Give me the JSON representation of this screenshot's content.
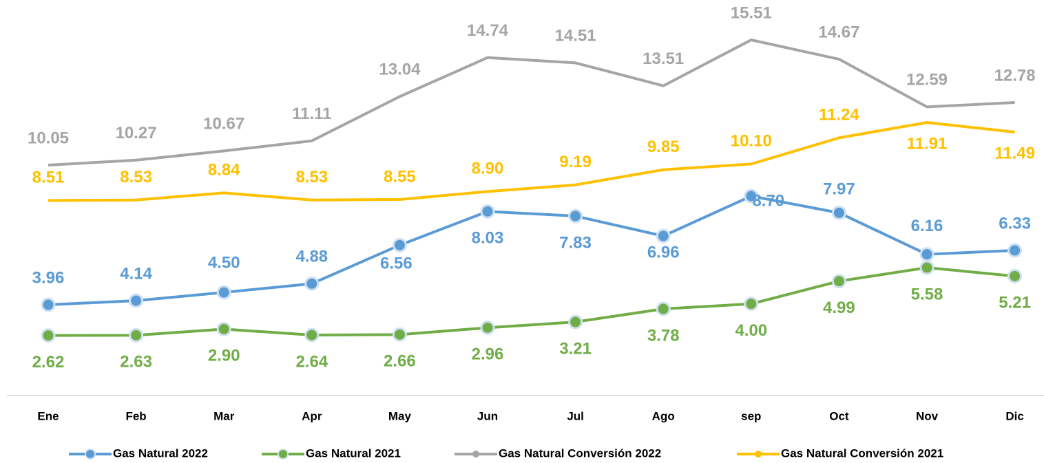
{
  "chart_data": {
    "type": "line",
    "categories": [
      "Ene",
      "Feb",
      "Mar",
      "Apr",
      "May",
      "Jun",
      "Jul",
      "Ago",
      "sep",
      "Oct",
      "Nov",
      "Dic"
    ],
    "series": [
      {
        "name": "Gas Natural 2022",
        "color": "#5b9bd5",
        "marker": true,
        "values": [
          3.96,
          4.14,
          4.5,
          4.88,
          6.56,
          8.03,
          7.83,
          6.96,
          8.7,
          7.97,
          6.16,
          6.33
        ],
        "value_labels": [
          "3.96",
          "4.14",
          "4.50",
          "4.88",
          "6.56",
          "8.03",
          "7.83",
          "6.96",
          "8.70",
          "7.97",
          "6.16",
          "6.33"
        ]
      },
      {
        "name": "Gas Natural 2021",
        "color": "#70ad47",
        "marker": true,
        "values": [
          2.62,
          2.63,
          2.9,
          2.64,
          2.66,
          2.96,
          3.21,
          3.78,
          4.0,
          4.99,
          5.58,
          5.21
        ],
        "value_labels": [
          "2.62",
          "2.63",
          "2.90",
          "2.64",
          "2.66",
          "2.96",
          "3.21",
          "3.78",
          "4.00",
          "4.99",
          "5.58",
          "5.21"
        ]
      },
      {
        "name": "Gas Natural Conversión 2022",
        "color": "#a5a5a5",
        "marker": false,
        "values": [
          10.05,
          10.27,
          10.67,
          11.11,
          13.04,
          14.74,
          14.51,
          13.51,
          15.51,
          14.67,
          12.59,
          12.78
        ],
        "value_labels": [
          "10.05",
          "10.27",
          "10.67",
          "11.11",
          "13.04",
          "14.74",
          "14.51",
          "13.51",
          "15.51",
          "14.67",
          "12.59",
          "12.78"
        ]
      },
      {
        "name": "Gas Natural Conversión 2021",
        "color": "#ffc000",
        "marker": false,
        "values": [
          8.51,
          8.53,
          8.84,
          8.53,
          8.55,
          8.9,
          9.19,
          9.85,
          10.1,
          11.24,
          11.91,
          11.49
        ],
        "value_labels": [
          "8.51",
          "8.53",
          "8.84",
          "8.53",
          "8.55",
          "8.90",
          "9.19",
          "9.85",
          "10.10",
          "11.24",
          "11.91",
          "11.49"
        ]
      }
    ]
  }
}
